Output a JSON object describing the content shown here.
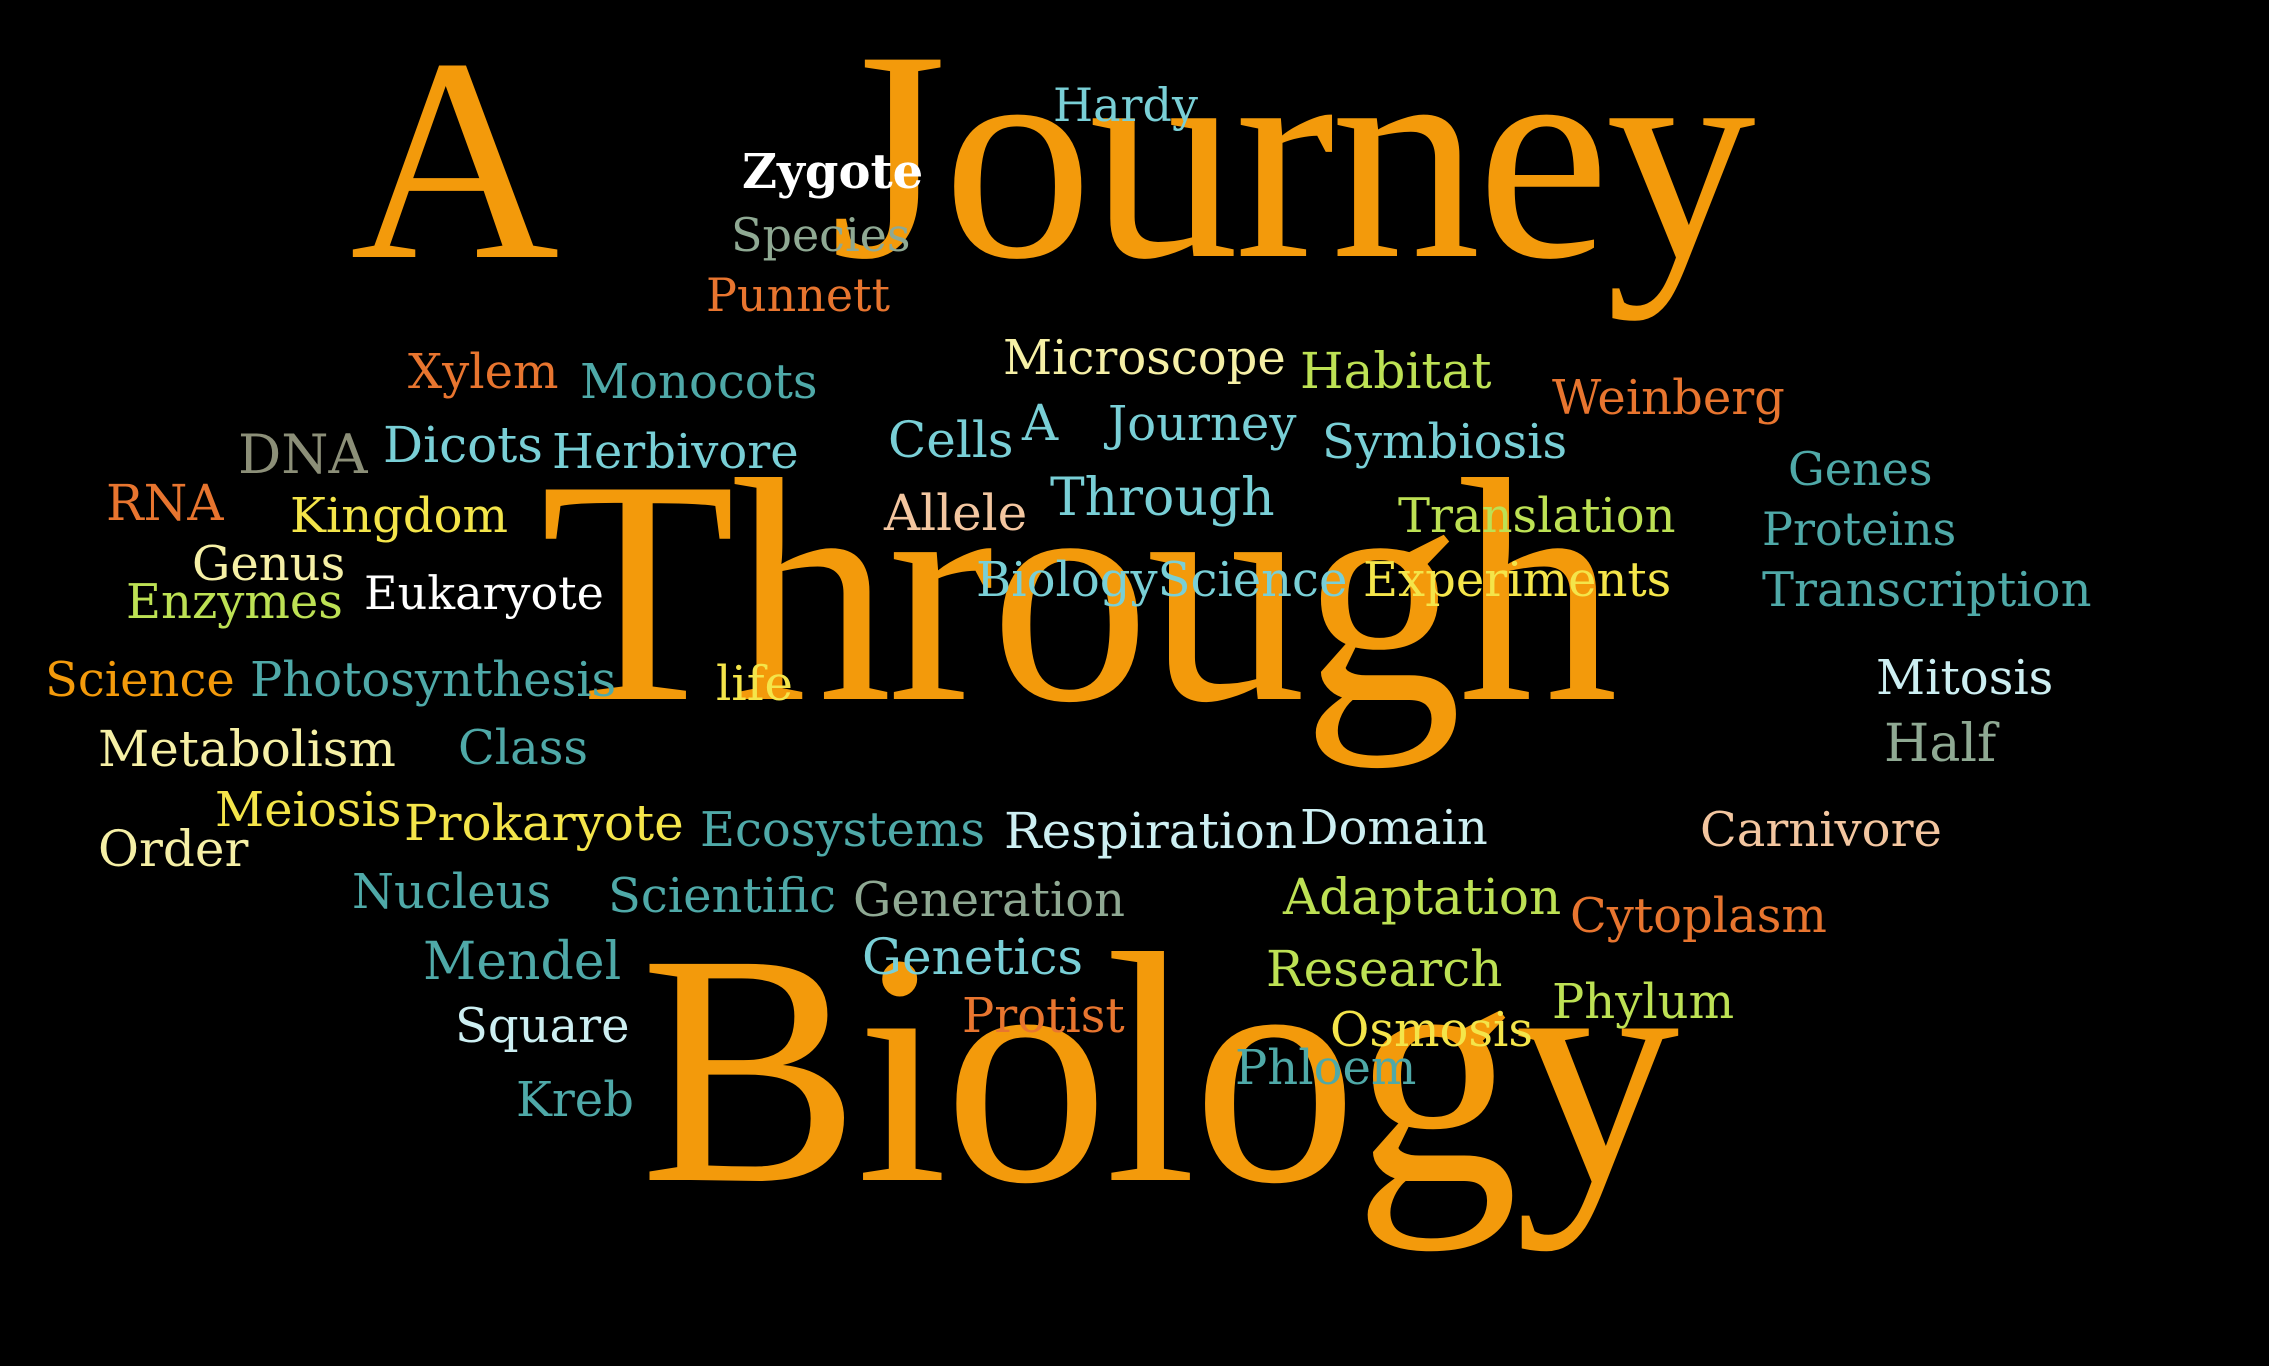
{
  "palette": {
    "background": "#000000",
    "orange": "#F39A0B",
    "teal": "#4FA9A8",
    "sky": "#79CFD6",
    "lime": "#BDE154",
    "yellow": "#F4E54A",
    "cream": "#F6F0A6",
    "peach": "#F3C6A0",
    "coral": "#E8752F",
    "sage": "#8FA993",
    "olive": "#8C8F78",
    "white": "#FFFFFF",
    "lightblue": "#CDEFF2"
  },
  "cloud": {
    "words": [
      {
        "text": "A",
        "color": "#F39A0B"
      },
      {
        "text": "Journey",
        "color": "#F39A0B"
      },
      {
        "text": "Through",
        "color": "#F39A0B"
      },
      {
        "text": "Biology",
        "color": "#F39A0B"
      },
      {
        "text": "Hardy",
        "color": "#79CFD6"
      },
      {
        "text": "Zygote",
        "color": "#FFFFFF"
      },
      {
        "text": "Species",
        "color": "#8FA993"
      },
      {
        "text": "Punnett",
        "color": "#E8752F"
      },
      {
        "text": "Xylem",
        "color": "#E8752F"
      },
      {
        "text": "Monocots",
        "color": "#4FA9A8"
      },
      {
        "text": "Microscope",
        "color": "#F6F0A6"
      },
      {
        "text": "Habitat",
        "color": "#BDE154"
      },
      {
        "text": "Weinberg",
        "color": "#E8752F"
      },
      {
        "text": "DNA",
        "color": "#8C8F78"
      },
      {
        "text": "Dicots",
        "color": "#79CFD6"
      },
      {
        "text": "Herbivore",
        "color": "#79CFD6"
      },
      {
        "text": "Cells",
        "color": "#79CFD6"
      },
      {
        "text": "A",
        "color": "#79CFD6"
      },
      {
        "text": "Journey",
        "color": "#79CFD6"
      },
      {
        "text": "Symbiosis",
        "color": "#79CFD6"
      },
      {
        "text": "Genes",
        "color": "#4FA9A8"
      },
      {
        "text": "RNA",
        "color": "#E8752F"
      },
      {
        "text": "Kingdom",
        "color": "#F4E54A"
      },
      {
        "text": "Allele",
        "color": "#F3C6A0"
      },
      {
        "text": "Through",
        "color": "#79CFD6"
      },
      {
        "text": "Translation",
        "color": "#BDE154"
      },
      {
        "text": "Proteins",
        "color": "#4FA9A8"
      },
      {
        "text": "Genus",
        "color": "#F6F0A6"
      },
      {
        "text": "Enzymes",
        "color": "#BDE154"
      },
      {
        "text": "Eukaryote",
        "color": "#FFFFFF"
      },
      {
        "text": "BiologyScience",
        "color": "#79CFD6"
      },
      {
        "text": "Experiments",
        "color": "#F4E54A"
      },
      {
        "text": "Transcription",
        "color": "#4FA9A8"
      },
      {
        "text": "Science",
        "color": "#F39A0B"
      },
      {
        "text": "Photosynthesis",
        "color": "#4FA9A8"
      },
      {
        "text": "life",
        "color": "#F4E54A"
      },
      {
        "text": "Mitosis",
        "color": "#CDEFF2"
      },
      {
        "text": "Metabolism",
        "color": "#F6F0A6"
      },
      {
        "text": "Class",
        "color": "#4FA9A8"
      },
      {
        "text": "Half",
        "color": "#8FA993"
      },
      {
        "text": "Meiosis",
        "color": "#F4E54A"
      },
      {
        "text": "Order",
        "color": "#F6F0A6"
      },
      {
        "text": "Prokaryote",
        "color": "#F4E54A"
      },
      {
        "text": "Ecosystems",
        "color": "#4FA9A8"
      },
      {
        "text": "Respiration",
        "color": "#CDEFF2"
      },
      {
        "text": "Domain",
        "color": "#CDEFF2"
      },
      {
        "text": "Carnivore",
        "color": "#F3C6A0"
      },
      {
        "text": "Nucleus",
        "color": "#4FA9A8"
      },
      {
        "text": "Scientific",
        "color": "#4FA9A8"
      },
      {
        "text": "Generation",
        "color": "#8FA993"
      },
      {
        "text": "Adaptation",
        "color": "#BDE154"
      },
      {
        "text": "Cytoplasm",
        "color": "#E8752F"
      },
      {
        "text": "Mendel",
        "color": "#4FA9A8"
      },
      {
        "text": "Genetics",
        "color": "#79CFD6"
      },
      {
        "text": "Research",
        "color": "#BDE154"
      },
      {
        "text": "Phylum",
        "color": "#BDE154"
      },
      {
        "text": "Square",
        "color": "#CDEFF2"
      },
      {
        "text": "Protist",
        "color": "#E8752F"
      },
      {
        "text": "Osmosis",
        "color": "#F4E54A"
      },
      {
        "text": "Phloem",
        "color": "#4FA9A8"
      },
      {
        "text": "Kreb",
        "color": "#4FA9A8"
      }
    ]
  }
}
